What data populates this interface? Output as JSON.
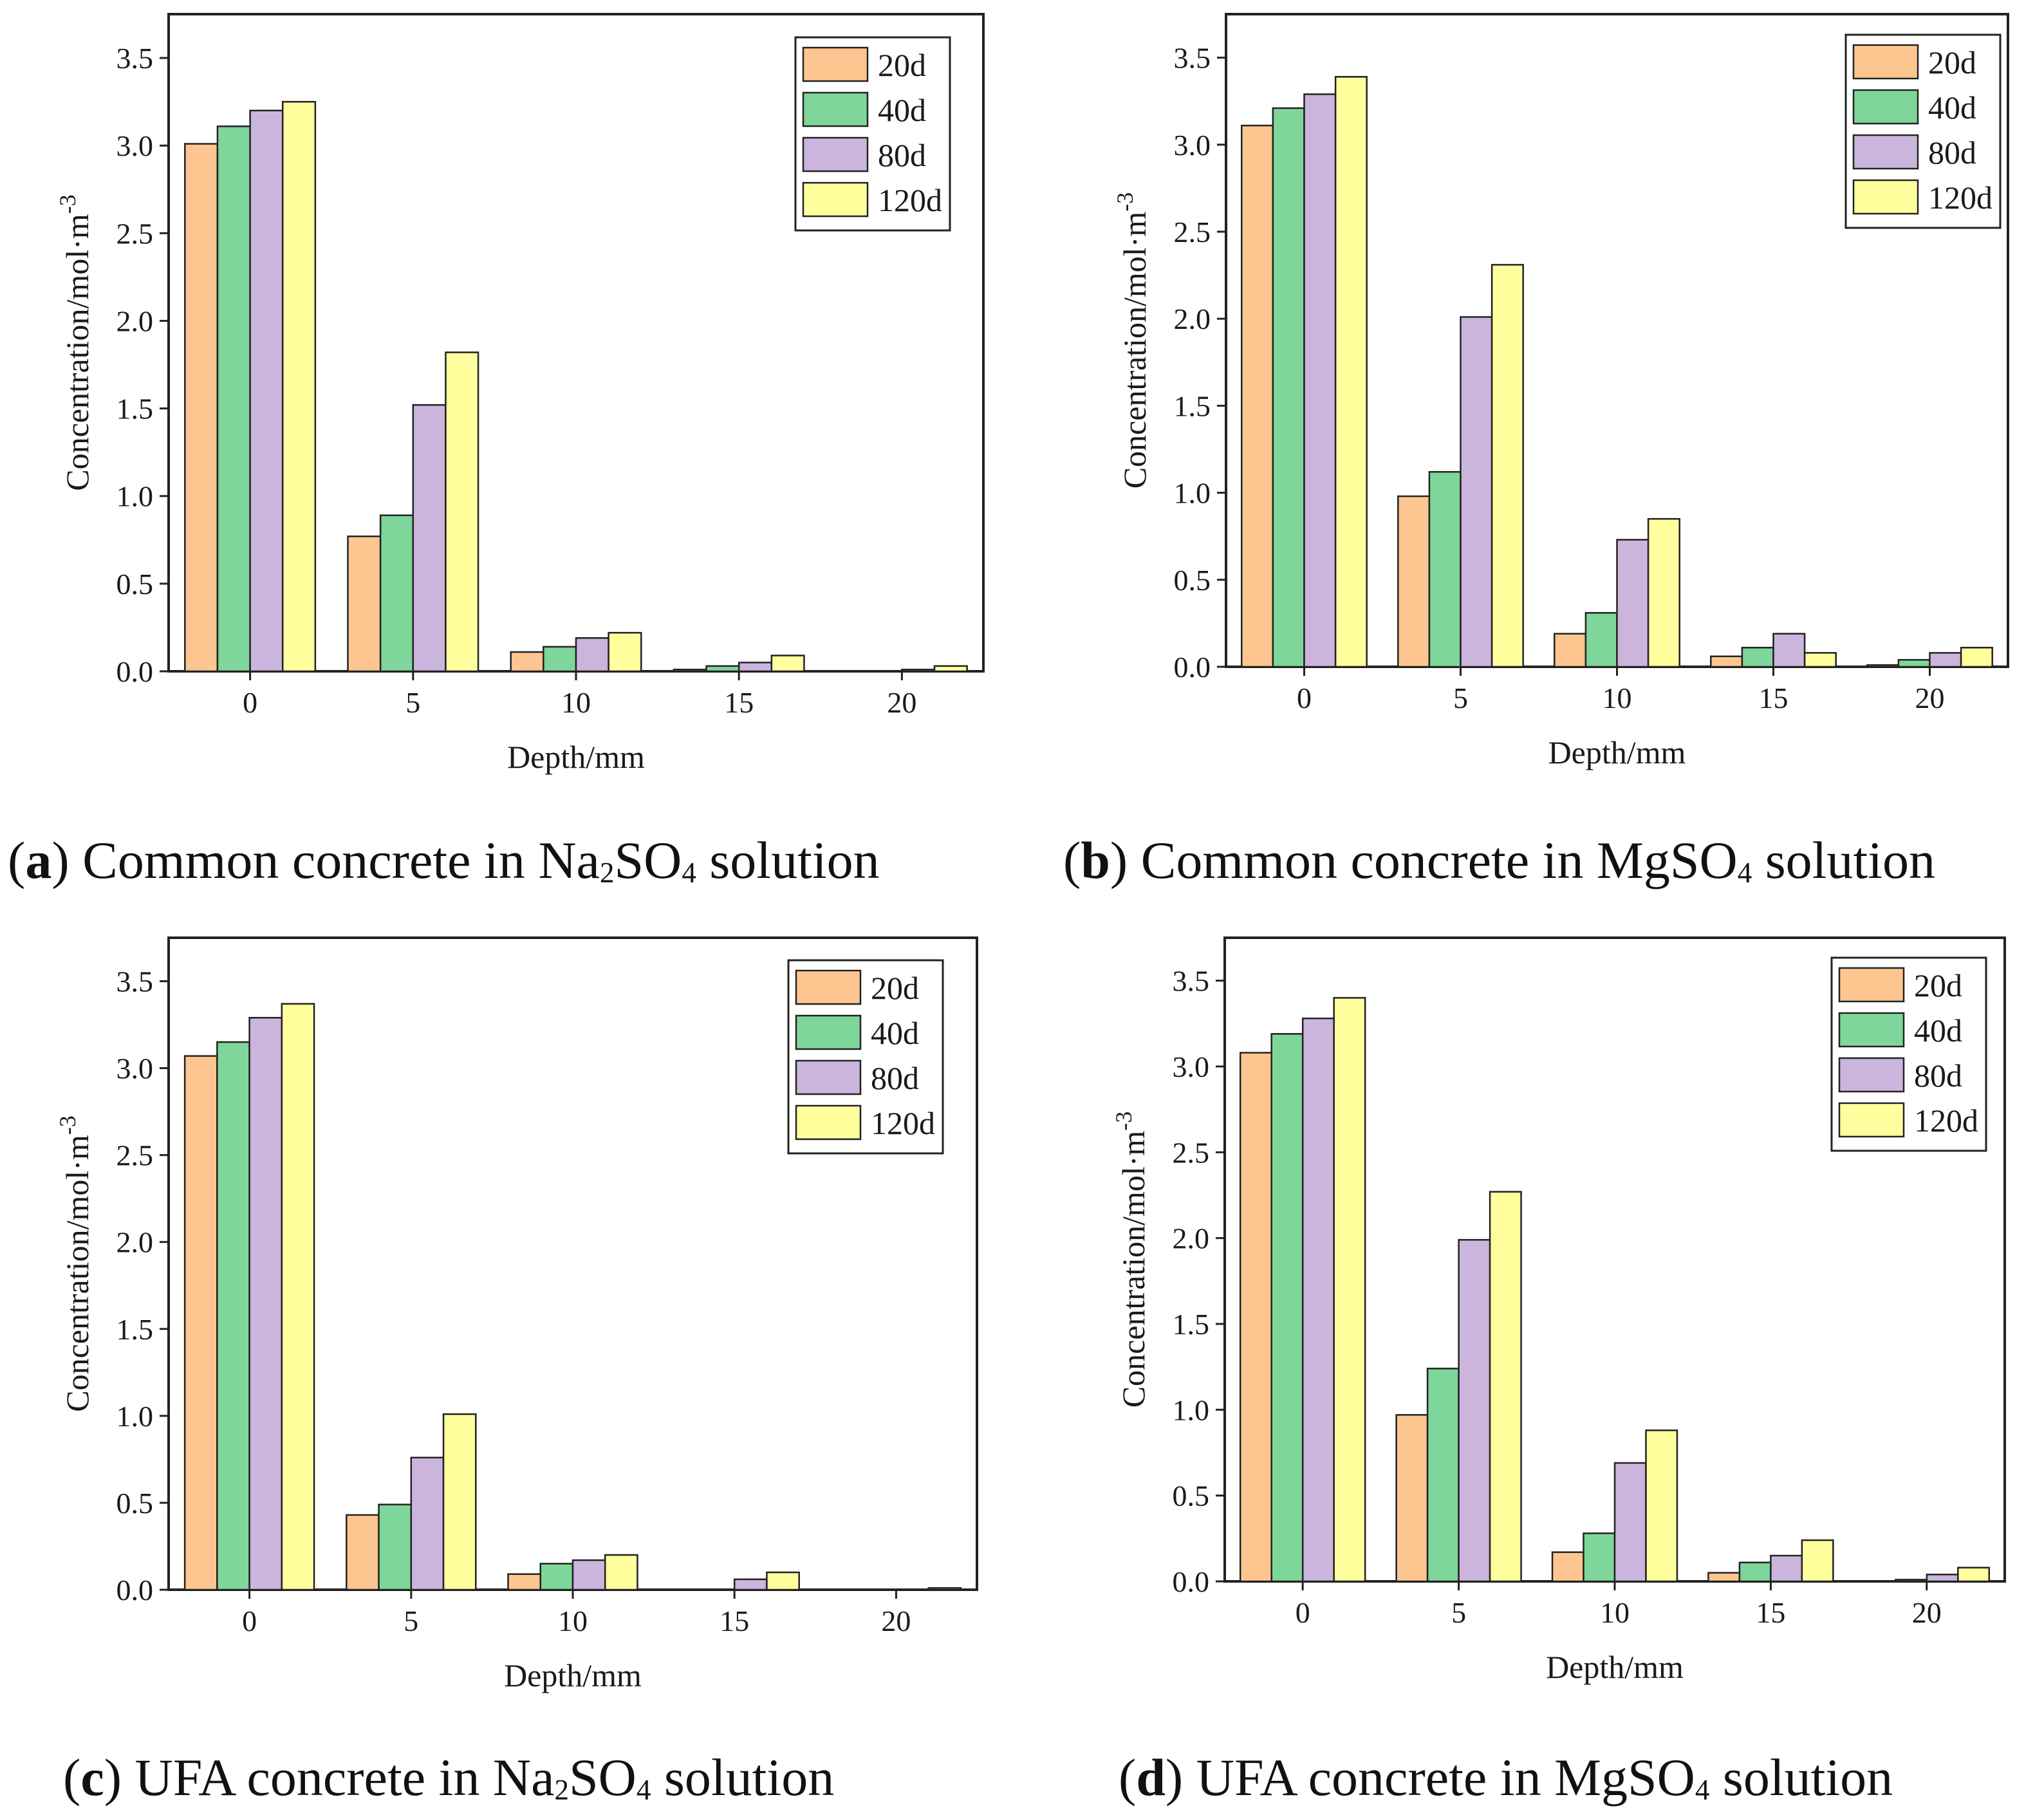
{
  "colors": {
    "20d": "#fdc690",
    "40d": "#7fd69a",
    "80d": "#cbb5dc",
    "120d": "#ffff9e"
  },
  "chart_data": [
    {
      "type": "bar",
      "panel": "a",
      "categories": [
        "0",
        "5",
        "10",
        "15",
        "20"
      ],
      "series": [
        {
          "name": "20d",
          "values": [
            3.01,
            0.77,
            0.11,
            0.01,
            0.0
          ]
        },
        {
          "name": "40d",
          "values": [
            3.11,
            0.89,
            0.14,
            0.03,
            0.0
          ]
        },
        {
          "name": "80d",
          "values": [
            3.2,
            1.52,
            0.19,
            0.05,
            0.01
          ]
        },
        {
          "name": "120d",
          "values": [
            3.25,
            1.82,
            0.22,
            0.09,
            0.03
          ]
        }
      ],
      "xlabel": "Depth/mm",
      "ylabel": "Concentration/mol·m",
      "ylabel_sup": "-3",
      "yticks": [
        "0.0",
        "0.5",
        "1.0",
        "1.5",
        "2.0",
        "2.5",
        "3.0",
        "3.5"
      ],
      "ylim": [
        0,
        3.75
      ],
      "legend": "top-right",
      "caption": {
        "letter": "a",
        "text_before": ") Common concrete in Na",
        "sub1": "2",
        "text_mid": "SO",
        "sub2": "4",
        "text_after": " solution"
      }
    },
    {
      "type": "bar",
      "panel": "b",
      "categories": [
        "0",
        "5",
        "10",
        "15",
        "20"
      ],
      "series": [
        {
          "name": "20d",
          "values": [
            3.11,
            0.98,
            0.19,
            0.06,
            0.01
          ]
        },
        {
          "name": "40d",
          "values": [
            3.21,
            1.12,
            0.31,
            0.11,
            0.04
          ]
        },
        {
          "name": "80d",
          "values": [
            3.29,
            2.01,
            0.73,
            0.19,
            0.08
          ]
        },
        {
          "name": "120d",
          "values": [
            3.39,
            2.31,
            0.85,
            0.08,
            0.11
          ]
        }
      ],
      "xlabel": "Depth/mm",
      "ylabel": "Concentration/mol·m",
      "ylabel_sup": "-3",
      "yticks": [
        "0.0",
        "0.5",
        "1.0",
        "1.5",
        "2.0",
        "2.5",
        "3.0",
        "3.5"
      ],
      "ylim": [
        0,
        3.75
      ],
      "legend": "top-right",
      "caption": {
        "letter": "b",
        "text_before": ") Common concrete in MgSO",
        "sub1": "4",
        "text_mid": "",
        "sub2": "",
        "text_after": " solution"
      }
    },
    {
      "type": "bar",
      "panel": "c",
      "categories": [
        "0",
        "5",
        "10",
        "15",
        "20"
      ],
      "series": [
        {
          "name": "20d",
          "values": [
            3.07,
            0.43,
            0.09,
            0.0,
            0.0
          ]
        },
        {
          "name": "40d",
          "values": [
            3.15,
            0.49,
            0.15,
            0.0,
            0.0
          ]
        },
        {
          "name": "80d",
          "values": [
            3.29,
            0.76,
            0.17,
            0.06,
            0.0
          ]
        },
        {
          "name": "120d",
          "values": [
            3.37,
            1.01,
            0.2,
            0.1,
            0.01
          ]
        }
      ],
      "xlabel": "Depth/mm",
      "ylabel": "Concentration/mol·m",
      "ylabel_sup": "-3",
      "yticks": [
        "0.0",
        "0.5",
        "1.0",
        "1.5",
        "2.0",
        "2.5",
        "3.0",
        "3.5"
      ],
      "ylim": [
        0,
        3.75
      ],
      "legend": "top-right",
      "caption": {
        "letter": "c",
        "text_before": ") UFA concrete in Na",
        "sub1": "2",
        "text_mid": "SO",
        "sub2": "4",
        "text_after": " solution"
      }
    },
    {
      "type": "bar",
      "panel": "d",
      "categories": [
        "0",
        "5",
        "10",
        "15",
        "20"
      ],
      "series": [
        {
          "name": "20d",
          "values": [
            3.08,
            0.97,
            0.17,
            0.05,
            0.0
          ]
        },
        {
          "name": "40d",
          "values": [
            3.19,
            1.24,
            0.28,
            0.11,
            0.01
          ]
        },
        {
          "name": "80d",
          "values": [
            3.28,
            1.99,
            0.69,
            0.15,
            0.04
          ]
        },
        {
          "name": "120d",
          "values": [
            3.4,
            2.27,
            0.88,
            0.24,
            0.08
          ]
        }
      ],
      "xlabel": "Depth/mm",
      "ylabel": "Concentration/mol·m",
      "ylabel_sup": "-3",
      "yticks": [
        "0.0",
        "0.5",
        "1.0",
        "1.5",
        "2.0",
        "2.5",
        "3.0",
        "3.5"
      ],
      "ylim": [
        0,
        3.75
      ],
      "legend": "top-right",
      "caption": {
        "letter": "d",
        "text_before": ") UFA concrete in MgSO",
        "sub1": "4",
        "text_mid": "",
        "sub2": "",
        "text_after": " solution"
      }
    }
  ]
}
